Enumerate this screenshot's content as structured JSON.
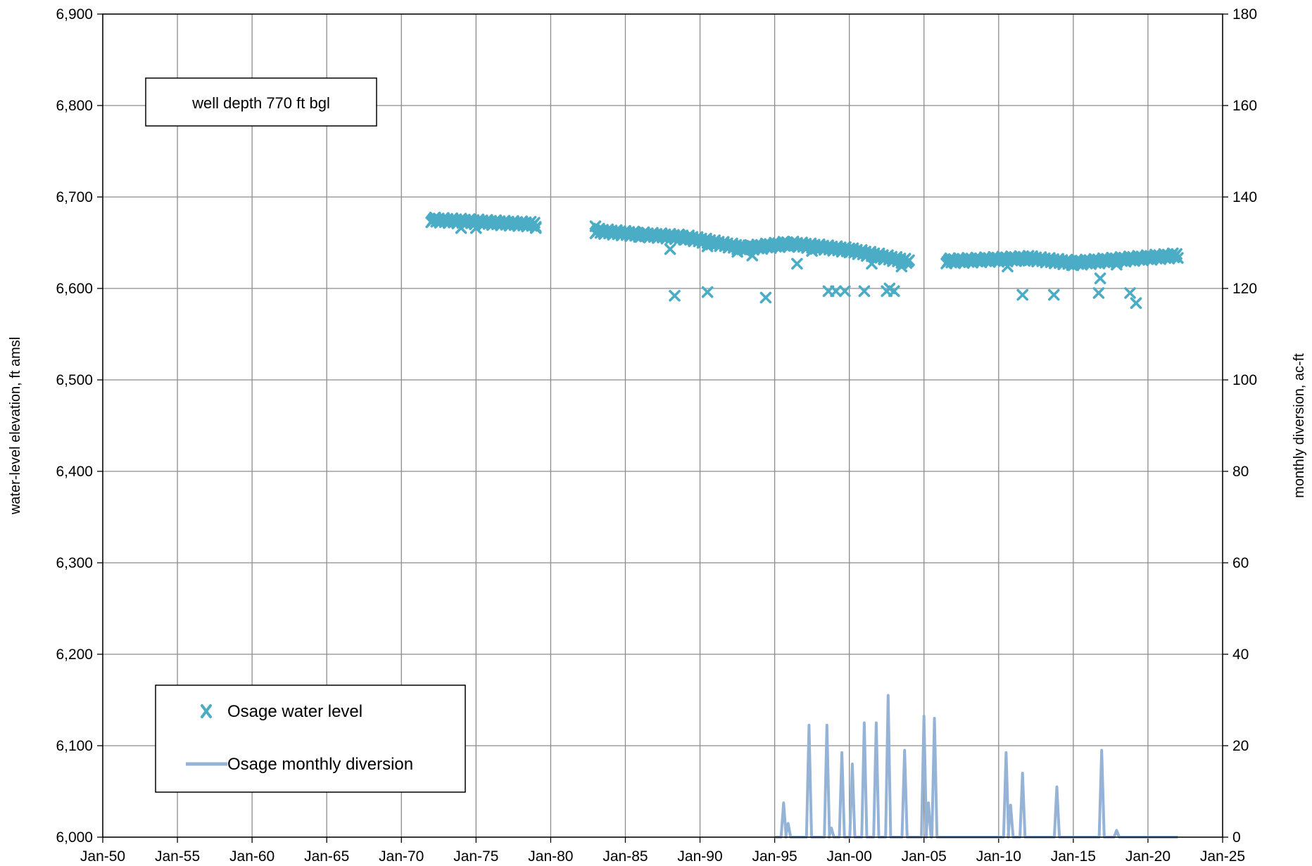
{
  "chart_data": {
    "type": "line",
    "x_axis": {
      "ticks": [
        "Jan-50",
        "Jan-55",
        "Jan-60",
        "Jan-65",
        "Jan-70",
        "Jan-75",
        "Jan-80",
        "Jan-85",
        "Jan-90",
        "Jan-95",
        "Jan-00",
        "Jan-05",
        "Jan-10",
        "Jan-15",
        "Jan-20",
        "Jan-25"
      ],
      "range": [
        1950,
        2025
      ],
      "grid": true
    },
    "y_axis_left": {
      "label": "water-level elevation, ft amsl",
      "range": [
        6000,
        6900
      ],
      "ticks": [
        "6,000",
        "6,100",
        "6,200",
        "6,300",
        "6,400",
        "6,500",
        "6,600",
        "6,700",
        "6,800",
        "6,900"
      ],
      "grid": true
    },
    "y_axis_right": {
      "label": "monthly diversion, ac-ft",
      "range": [
        0,
        180
      ],
      "ticks": [
        "0",
        "20",
        "40",
        "60",
        "80",
        "100",
        "120",
        "140",
        "160",
        "180"
      ]
    },
    "annotation": "well depth 770 ft bgl",
    "legend_position": "bottom-left",
    "series": [
      {
        "name": "Osage water level",
        "kind": "scatter",
        "axis": "left",
        "marker": "x",
        "color": "#4bacc6",
        "segments": [
          {
            "from": [
              1972.0,
              6675
            ],
            "to": [
              1979.0,
              6670
            ]
          },
          {
            "from": [
              1983.0,
              6663
            ],
            "to": [
              1986.0,
              6659
            ]
          },
          {
            "from": [
              1986.0,
              6659
            ],
            "to": [
              1989.0,
              6656
            ]
          },
          {
            "from": [
              1989.0,
              6656
            ],
            "to": [
              1993.0,
              6644
            ]
          },
          {
            "from": [
              1993.0,
              6644
            ],
            "to": [
              1996.0,
              6649
            ]
          },
          {
            "from": [
              1996.0,
              6649
            ],
            "to": [
              2000.0,
              6642
            ]
          },
          {
            "from": [
              2000.0,
              6642
            ],
            "to": [
              2004.0,
              6629
            ]
          },
          {
            "from": [
              2006.5,
              6630
            ],
            "to": [
              2012.0,
              6633
            ]
          },
          {
            "from": [
              2012.0,
              6633
            ],
            "to": [
              2015.0,
              6628
            ]
          },
          {
            "from": [
              2015.0,
              6628
            ],
            "to": [
              2022.0,
              6636
            ]
          }
        ],
        "points": [
          [
            1974.0,
            6666
          ],
          [
            1975.0,
            6666
          ],
          [
            1979.0,
            6666
          ],
          [
            1983.0,
            6668
          ],
          [
            1987.5,
            6656
          ],
          [
            1988.0,
            6643
          ],
          [
            1990.5,
            6646
          ],
          [
            1992.5,
            6640
          ],
          [
            1993.5,
            6636
          ],
          [
            1996.5,
            6627
          ],
          [
            1997.5,
            6641
          ],
          [
            2001.5,
            6627
          ],
          [
            2002.3,
            6632
          ],
          [
            2003.5,
            6624
          ],
          [
            1988.3,
            6592
          ],
          [
            1990.5,
            6596
          ],
          [
            1994.4,
            6590
          ],
          [
            1998.6,
            6597
          ],
          [
            1999.1,
            6597
          ],
          [
            1999.7,
            6597
          ],
          [
            2001.0,
            6597
          ],
          [
            2002.5,
            6597
          ],
          [
            2003.0,
            6597
          ],
          [
            2002.7,
            6600
          ],
          [
            2010.6,
            6624
          ],
          [
            2011.6,
            6593
          ],
          [
            2013.7,
            6593
          ],
          [
            2016.7,
            6595
          ],
          [
            2016.8,
            6611
          ],
          [
            2017.9,
            6626
          ],
          [
            2018.8,
            6595
          ],
          [
            2019.2,
            6584
          ]
        ]
      },
      {
        "name": "Osage monthly diversion",
        "kind": "line",
        "axis": "right",
        "color": "#95b3d7",
        "baseline": {
          "from": 1995.0,
          "to": 2022.0,
          "value": 0
        },
        "spikes": [
          [
            1995.6,
            7.5
          ],
          [
            1995.9,
            3
          ],
          [
            1997.3,
            24.5
          ],
          [
            1998.5,
            24.5
          ],
          [
            1998.8,
            2
          ],
          [
            1999.5,
            18.5
          ],
          [
            2000.2,
            16
          ],
          [
            2001.0,
            25
          ],
          [
            2001.8,
            25
          ],
          [
            2002.6,
            31
          ],
          [
            2003.7,
            19
          ],
          [
            2005.0,
            26.5
          ],
          [
            2005.3,
            7.5
          ],
          [
            2005.7,
            26
          ],
          [
            2010.5,
            18.5
          ],
          [
            2010.8,
            7
          ],
          [
            2011.6,
            14
          ],
          [
            2013.9,
            11
          ],
          [
            2016.9,
            19
          ],
          [
            2017.9,
            1.5
          ]
        ]
      }
    ]
  }
}
